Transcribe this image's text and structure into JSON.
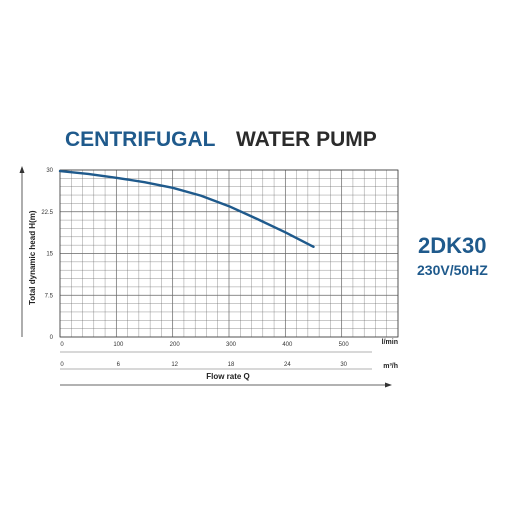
{
  "title": {
    "part1": "CENTRIFUGAL",
    "part2": "WATER PUMP"
  },
  "model": {
    "name": "2DK30",
    "spec": "230V/50HZ"
  },
  "colors": {
    "brand": "#1f5a8c",
    "curve": "#1f5a8c",
    "grid": "#666666"
  },
  "chart_data": {
    "type": "line",
    "ylabel": "Total dynamic head H(m)",
    "xlabel": "Flow rate Q",
    "x_unit": "l/min",
    "x2_unit": "m³/h",
    "xlim": [
      0,
      600
    ],
    "ylim": [
      0,
      30
    ],
    "x_ticks": [
      "0",
      "100",
      "200",
      "300",
      "400",
      "500"
    ],
    "x2_ticks": [
      "0",
      "6",
      "12",
      "18",
      "24",
      "30"
    ],
    "y_ticks": [
      "0",
      "7.5",
      "15",
      "22.5",
      "30"
    ],
    "grid": true,
    "series": [
      {
        "x": [
          0,
          50,
          100,
          150,
          200,
          250,
          300,
          350,
          400,
          450
        ],
        "y": [
          29.8,
          29.3,
          28.6,
          27.8,
          26.8,
          25.4,
          23.5,
          21.2,
          18.8,
          16.2
        ]
      }
    ]
  }
}
